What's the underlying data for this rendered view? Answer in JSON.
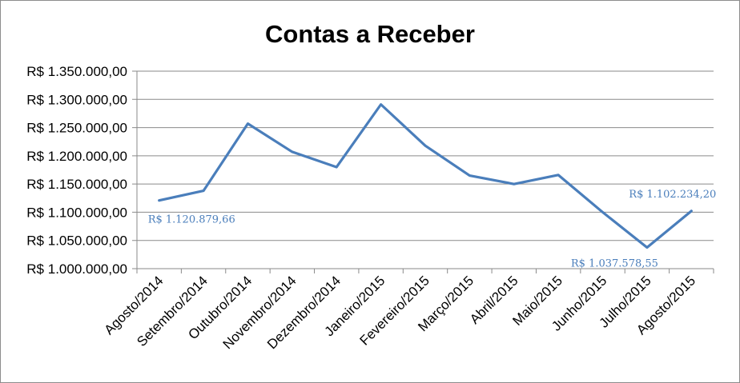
{
  "chart_data": {
    "type": "line",
    "title": "Contas a Receber",
    "xlabel": "",
    "ylabel": "",
    "categories": [
      "Agosto/2014",
      "Setembro/2014",
      "Outubro/2014",
      "Novembro/2014",
      "Dezembro/2014",
      "Janeiro/2015",
      "Fevereiro/2015",
      "Março/2015",
      "Abril/2015",
      "Maio/2015",
      "Junho/2015",
      "Julho/2015",
      "Agosto/2015"
    ],
    "series": [
      {
        "color": "#4a7ebb",
        "values": [
          1120879.66,
          1138000,
          1257000,
          1207000,
          1180000,
          1291000,
          1218000,
          1165000,
          1150000,
          1166000,
          1100000,
          1037578.55,
          1102234.2
        ]
      }
    ],
    "ylim": [
      1000000,
      1350000
    ],
    "yticks": [
      "R$ 1.000.000,00",
      "R$ 1.050.000,00",
      "R$ 1.100.000,00",
      "R$ 1.150.000,00",
      "R$ 1.200.000,00",
      "R$ 1.250.000,00",
      "R$ 1.300.000,00",
      "R$ 1.350.000,00"
    ],
    "ytick_values": [
      1000000,
      1050000,
      1100000,
      1150000,
      1200000,
      1250000,
      1300000,
      1350000
    ],
    "grid": true,
    "legend": "none",
    "data_labels": [
      {
        "index": 0,
        "text": "R$ 1.120.879,66"
      },
      {
        "index": 11,
        "text": "R$ 1.037.578,55"
      },
      {
        "index": 12,
        "text": "R$ 1.102.234,20"
      }
    ]
  }
}
